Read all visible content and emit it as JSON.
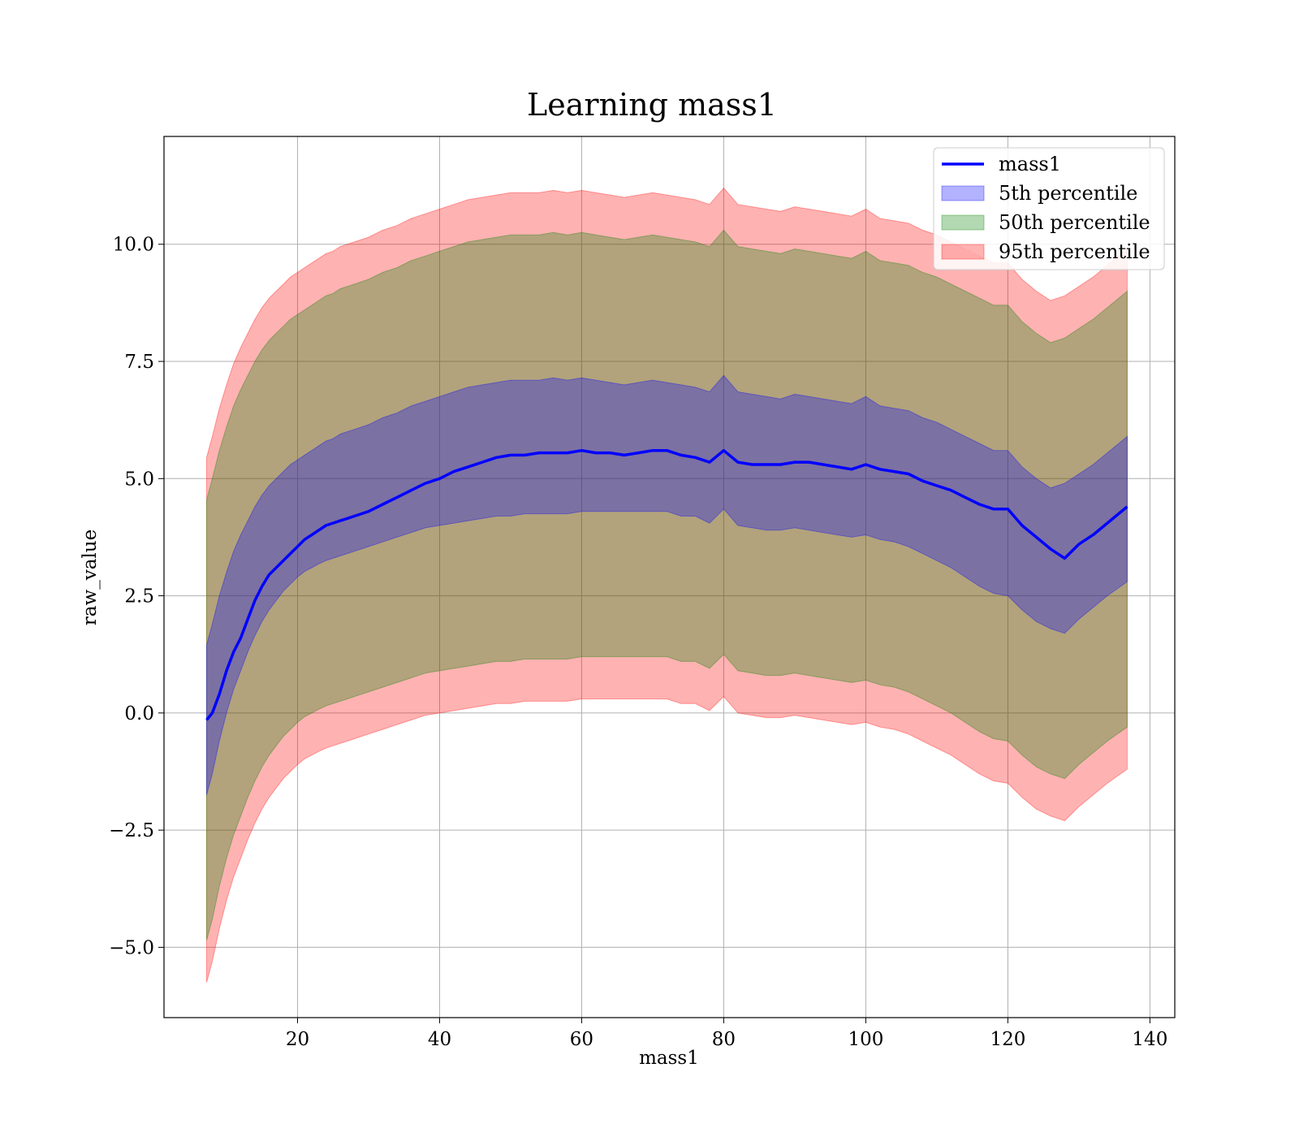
{
  "chart_data": {
    "type": "line",
    "title": "Learning mass1",
    "xlabel": "mass1",
    "ylabel": "raw_value",
    "xlim": [
      1.2,
      143.5
    ],
    "ylim": [
      -6.5,
      12.3
    ],
    "xticks": [
      20,
      40,
      60,
      80,
      100,
      120,
      140
    ],
    "xtick_labels": [
      "20",
      "40",
      "60",
      "80",
      "100",
      "120",
      "140"
    ],
    "yticks": [
      -5.0,
      -2.5,
      0.0,
      2.5,
      5.0,
      7.5,
      10.0
    ],
    "ytick_labels": [
      "−5.0",
      "−2.5",
      "0.0",
      "2.5",
      "5.0",
      "7.5",
      "10.0"
    ],
    "grid": true,
    "legend_position": "upper-right",
    "legend": [
      {
        "label": "mass1",
        "kind": "line",
        "color": "#0000ff"
      },
      {
        "label": "5th percentile",
        "kind": "patch",
        "color": "#0000ff"
      },
      {
        "label": "50th percentile",
        "kind": "patch",
        "color": "#008000"
      },
      {
        "label": "95th percentile",
        "kind": "patch",
        "color": "#ff0000"
      }
    ],
    "x": [
      7.2,
      8,
      9,
      10,
      11,
      12,
      13,
      14,
      15,
      16,
      17,
      18,
      19,
      20,
      21,
      22,
      23,
      24,
      25,
      26,
      27,
      28,
      29,
      30,
      32,
      34,
      36,
      38,
      40,
      42,
      44,
      46,
      48,
      50,
      52,
      54,
      56,
      58,
      60,
      62,
      64,
      66,
      68,
      70,
      72,
      74,
      76,
      78,
      80,
      82,
      84,
      86,
      88,
      90,
      92,
      94,
      96,
      98,
      100,
      102,
      104,
      106,
      108,
      110,
      112,
      114,
      116,
      118,
      120,
      122,
      124,
      126,
      128,
      130,
      132,
      134,
      136.8
    ],
    "series": [
      {
        "name": "mass1",
        "color": "#0000ff",
        "values": [
          -0.15,
          0.0,
          0.4,
          0.9,
          1.3,
          1.6,
          2.0,
          2.4,
          2.7,
          2.95,
          3.1,
          3.25,
          3.4,
          3.55,
          3.7,
          3.8,
          3.9,
          4.0,
          4.05,
          4.1,
          4.15,
          4.2,
          4.25,
          4.3,
          4.45,
          4.6,
          4.75,
          4.9,
          5.0,
          5.15,
          5.25,
          5.35,
          5.45,
          5.5,
          5.5,
          5.55,
          5.55,
          5.55,
          5.6,
          5.55,
          5.55,
          5.5,
          5.55,
          5.6,
          5.6,
          5.5,
          5.45,
          5.35,
          5.6,
          5.35,
          5.3,
          5.3,
          5.3,
          5.35,
          5.35,
          5.3,
          5.25,
          5.2,
          5.3,
          5.2,
          5.15,
          5.1,
          4.95,
          4.85,
          4.75,
          4.6,
          4.45,
          4.35,
          4.35,
          4.0,
          3.75,
          3.5,
          3.3,
          3.6,
          3.8,
          4.05,
          4.4
        ]
      }
    ],
    "bands": [
      {
        "name": "95th percentile",
        "color": "#ff0000",
        "lower": [
          -5.75,
          -5.3,
          -4.6,
          -4.0,
          -3.5,
          -3.1,
          -2.7,
          -2.35,
          -2.05,
          -1.8,
          -1.6,
          -1.4,
          -1.25,
          -1.1,
          -0.98,
          -0.9,
          -0.82,
          -0.75,
          -0.7,
          -0.65,
          -0.6,
          -0.55,
          -0.5,
          -0.45,
          -0.35,
          -0.25,
          -0.15,
          -0.05,
          0.0,
          0.05,
          0.1,
          0.15,
          0.2,
          0.2,
          0.25,
          0.25,
          0.25,
          0.25,
          0.3,
          0.3,
          0.3,
          0.3,
          0.3,
          0.3,
          0.3,
          0.2,
          0.2,
          0.05,
          0.35,
          0.0,
          -0.05,
          -0.1,
          -0.1,
          -0.05,
          -0.1,
          -0.15,
          -0.2,
          -0.25,
          -0.2,
          -0.3,
          -0.35,
          -0.45,
          -0.6,
          -0.75,
          -0.9,
          -1.1,
          -1.3,
          -1.45,
          -1.5,
          -1.8,
          -2.05,
          -2.2,
          -2.3,
          -2.0,
          -1.75,
          -1.5,
          -1.2
        ],
        "upper": [
          5.45,
          5.9,
          6.5,
          7.0,
          7.45,
          7.8,
          8.1,
          8.4,
          8.65,
          8.85,
          9.0,
          9.15,
          9.3,
          9.4,
          9.5,
          9.6,
          9.7,
          9.8,
          9.85,
          9.95,
          10.0,
          10.05,
          10.1,
          10.15,
          10.3,
          10.4,
          10.55,
          10.65,
          10.75,
          10.85,
          10.95,
          11.0,
          11.05,
          11.1,
          11.1,
          11.1,
          11.15,
          11.1,
          11.15,
          11.1,
          11.05,
          11.0,
          11.05,
          11.1,
          11.05,
          11.0,
          10.95,
          10.85,
          11.2,
          10.85,
          10.8,
          10.75,
          10.7,
          10.8,
          10.75,
          10.7,
          10.65,
          10.6,
          10.75,
          10.55,
          10.5,
          10.45,
          10.3,
          10.2,
          10.05,
          9.9,
          9.75,
          9.6,
          9.6,
          9.25,
          9.0,
          8.8,
          8.9,
          9.1,
          9.3,
          9.55,
          9.9
        ]
      },
      {
        "name": "50th percentile",
        "color": "#008000",
        "lower": [
          -4.85,
          -4.4,
          -3.7,
          -3.1,
          -2.6,
          -2.2,
          -1.8,
          -1.45,
          -1.15,
          -0.9,
          -0.7,
          -0.5,
          -0.35,
          -0.2,
          -0.08,
          0.0,
          0.08,
          0.15,
          0.2,
          0.25,
          0.3,
          0.35,
          0.4,
          0.45,
          0.55,
          0.65,
          0.75,
          0.85,
          0.9,
          0.95,
          1.0,
          1.05,
          1.1,
          1.1,
          1.15,
          1.15,
          1.15,
          1.15,
          1.2,
          1.2,
          1.2,
          1.2,
          1.2,
          1.2,
          1.2,
          1.1,
          1.1,
          0.95,
          1.25,
          0.9,
          0.85,
          0.8,
          0.8,
          0.85,
          0.8,
          0.75,
          0.7,
          0.65,
          0.7,
          0.6,
          0.55,
          0.45,
          0.3,
          0.15,
          0.0,
          -0.2,
          -0.4,
          -0.55,
          -0.6,
          -0.9,
          -1.15,
          -1.3,
          -1.4,
          -1.1,
          -0.85,
          -0.6,
          -0.3
        ],
        "upper": [
          4.55,
          5.0,
          5.6,
          6.1,
          6.55,
          6.9,
          7.2,
          7.5,
          7.75,
          7.95,
          8.1,
          8.25,
          8.4,
          8.5,
          8.6,
          8.7,
          8.8,
          8.9,
          8.95,
          9.05,
          9.1,
          9.15,
          9.2,
          9.25,
          9.4,
          9.5,
          9.65,
          9.75,
          9.85,
          9.95,
          10.05,
          10.1,
          10.15,
          10.2,
          10.2,
          10.2,
          10.25,
          10.2,
          10.25,
          10.2,
          10.15,
          10.1,
          10.15,
          10.2,
          10.15,
          10.1,
          10.05,
          9.95,
          10.3,
          9.95,
          9.9,
          9.85,
          9.8,
          9.9,
          9.85,
          9.8,
          9.75,
          9.7,
          9.85,
          9.65,
          9.6,
          9.55,
          9.4,
          9.3,
          9.15,
          9.0,
          8.85,
          8.7,
          8.7,
          8.35,
          8.1,
          7.9,
          8.0,
          8.2,
          8.4,
          8.65,
          9.0
        ]
      },
      {
        "name": "5th percentile",
        "color": "#0000ff",
        "lower": [
          -1.75,
          -1.3,
          -0.6,
          0.0,
          0.5,
          0.9,
          1.3,
          1.65,
          1.95,
          2.2,
          2.4,
          2.6,
          2.75,
          2.9,
          3.02,
          3.1,
          3.18,
          3.25,
          3.3,
          3.35,
          3.4,
          3.45,
          3.5,
          3.55,
          3.65,
          3.75,
          3.85,
          3.95,
          4.0,
          4.05,
          4.1,
          4.15,
          4.2,
          4.2,
          4.25,
          4.25,
          4.25,
          4.25,
          4.3,
          4.3,
          4.3,
          4.3,
          4.3,
          4.3,
          4.3,
          4.2,
          4.2,
          4.05,
          4.35,
          4.0,
          3.95,
          3.9,
          3.9,
          3.95,
          3.9,
          3.85,
          3.8,
          3.75,
          3.8,
          3.7,
          3.65,
          3.55,
          3.4,
          3.25,
          3.1,
          2.9,
          2.7,
          2.55,
          2.5,
          2.2,
          1.95,
          1.8,
          1.7,
          2.0,
          2.25,
          2.5,
          2.8
        ],
        "upper": [
          1.45,
          1.9,
          2.5,
          3.0,
          3.45,
          3.8,
          4.1,
          4.4,
          4.65,
          4.85,
          5.0,
          5.15,
          5.3,
          5.4,
          5.5,
          5.6,
          5.7,
          5.8,
          5.85,
          5.95,
          6.0,
          6.05,
          6.1,
          6.15,
          6.3,
          6.4,
          6.55,
          6.65,
          6.75,
          6.85,
          6.95,
          7.0,
          7.05,
          7.1,
          7.1,
          7.1,
          7.15,
          7.1,
          7.15,
          7.1,
          7.05,
          7.0,
          7.05,
          7.1,
          7.05,
          7.0,
          6.95,
          6.85,
          7.2,
          6.85,
          6.8,
          6.75,
          6.7,
          6.8,
          6.75,
          6.7,
          6.65,
          6.6,
          6.75,
          6.55,
          6.5,
          6.45,
          6.3,
          6.2,
          6.05,
          5.9,
          5.75,
          5.6,
          5.6,
          5.25,
          5.0,
          4.8,
          4.9,
          5.1,
          5.3,
          5.55,
          5.9
        ]
      }
    ]
  }
}
